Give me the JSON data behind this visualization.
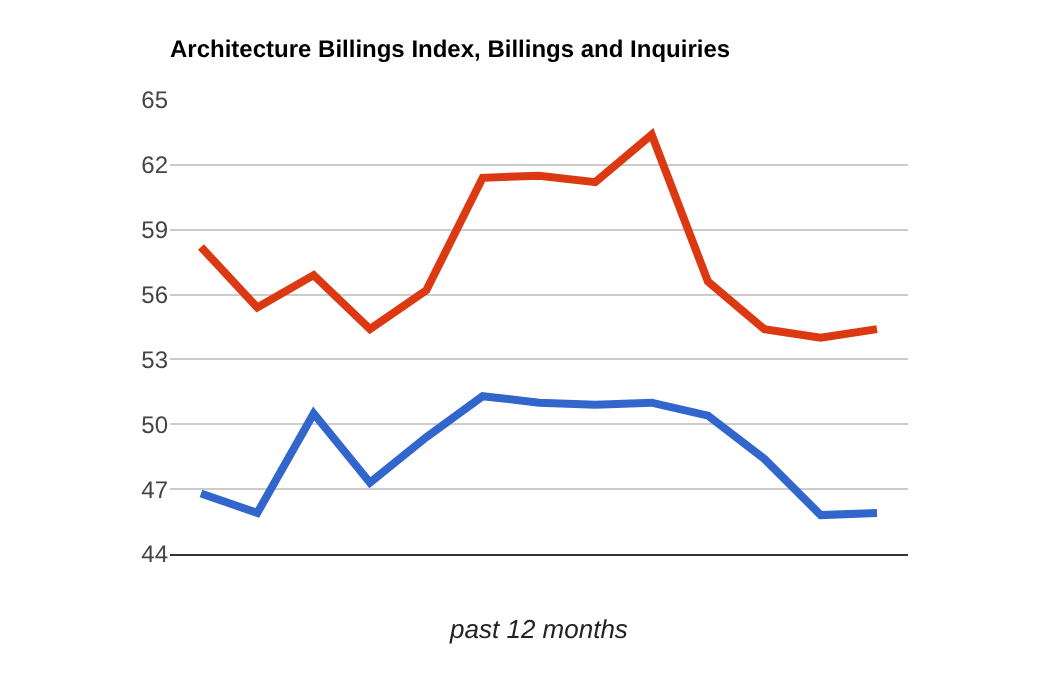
{
  "chart_data": {
    "type": "line",
    "title": "Architecture Billings Index, Billings and Inquiries",
    "xlabel": "past 12 months",
    "categories": [
      null,
      null,
      null,
      null,
      null,
      null,
      null,
      null,
      null,
      null,
      null,
      null,
      null
    ],
    "series": [
      {
        "color": "#dc3912",
        "values": [
          58.2,
          55.4,
          56.9,
          54.4,
          56.2,
          61.4,
          61.5,
          61.2,
          63.4,
          56.6,
          54.4,
          54.0,
          54.4
        ]
      },
      {
        "color": "#3366cc",
        "values": [
          46.8,
          45.9,
          50.5,
          47.3,
          49.4,
          51.3,
          51.0,
          50.9,
          51.0,
          50.4,
          48.4,
          45.8,
          45.9
        ]
      }
    ],
    "ylim": [
      44,
      65
    ],
    "yticks": [
      44,
      47,
      50,
      53,
      56,
      59,
      62,
      65
    ],
    "grid": "y"
  }
}
